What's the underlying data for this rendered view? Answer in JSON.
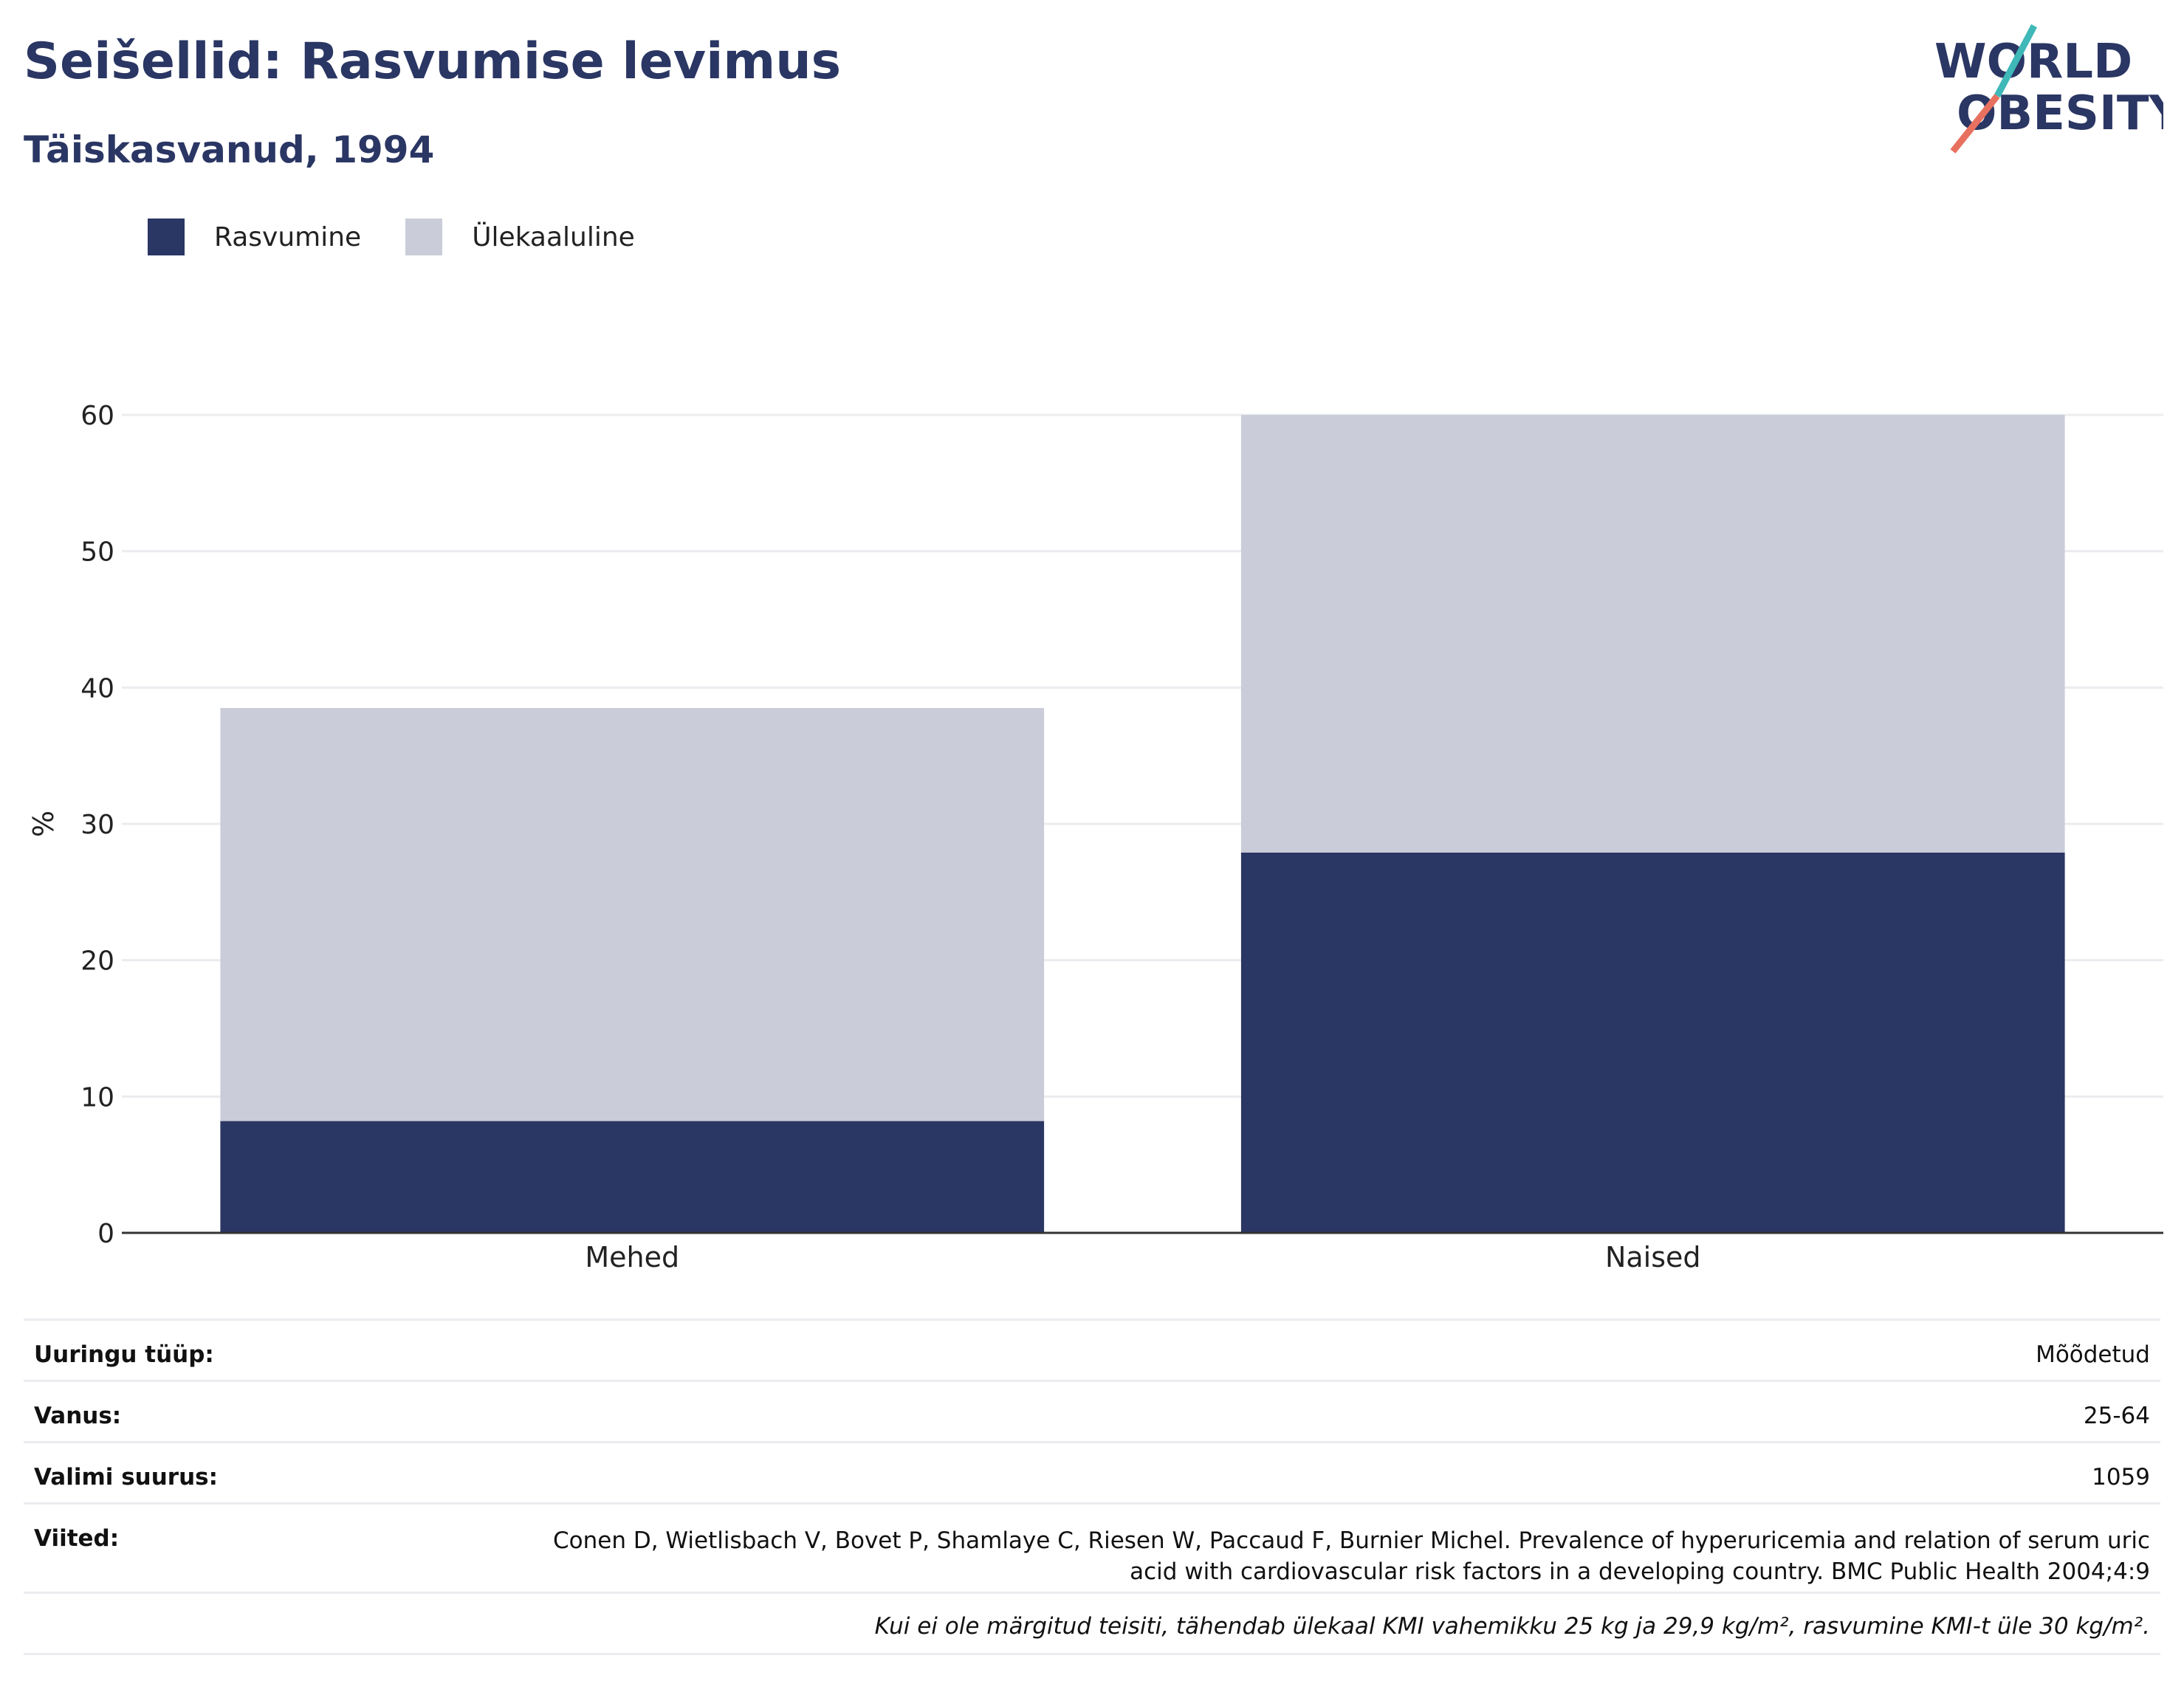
{
  "title": "Seišellid: Rasvumise levimus",
  "subtitle": "Täiskasvanud, 1994",
  "logo": {
    "line1": "WORLD",
    "line2": "OBESITY"
  },
  "colors": {
    "obesity": "#2a3663",
    "overweight": "#cacdd9",
    "grid": "#ececf0",
    "axis": "#333333"
  },
  "chart_data": {
    "type": "bar",
    "stacked": true,
    "categories": [
      "Mehed",
      "Naised"
    ],
    "series": [
      {
        "name": "Rasvumine",
        "values": [
          8.2,
          27.9
        ]
      },
      {
        "name": "Ülekaaluline",
        "values": [
          30.3,
          32.1
        ]
      }
    ],
    "ylabel": "%",
    "ylim": [
      0,
      60
    ],
    "yticks": [
      0,
      10,
      20,
      30,
      40,
      50,
      60
    ],
    "grid": true,
    "legend": "top-left"
  },
  "info": {
    "survey_type_label": "Uuringu tüüp:",
    "survey_type_value": "Mõõdetud",
    "age_label": "Vanus:",
    "age_value": "25-64",
    "sample_label": "Valimi suurus:",
    "sample_value": "1059",
    "refs_label": "Viited:",
    "refs_value": "Conen D, Wietlisbach V, Bovet P, Shamlaye C, Riesen W, Paccaud F, Burnier Michel. Prevalence of hyperuricemia and relation of serum uric acid with cardiovascular risk factors in a developing country. BMC Public Health 2004;4:9",
    "note": "Kui ei ole märgitud teisiti, tähendab ülekaal KMI vahemikku 25 kg ja 29,9 kg/m², rasvumine KMI-t üle 30 kg/m²."
  }
}
